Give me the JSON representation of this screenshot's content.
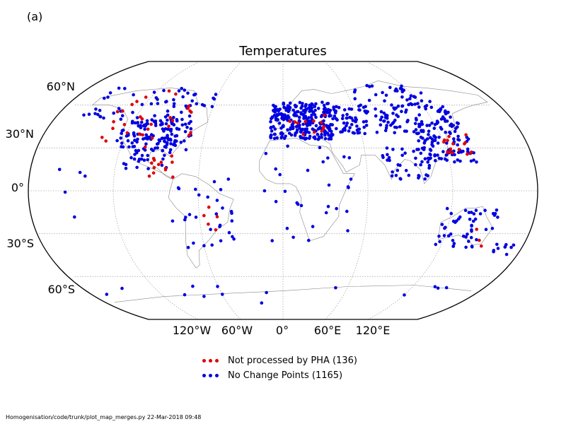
{
  "panel_label": "(a)",
  "title": "Temperatures",
  "lat_labels": [
    "60°N",
    "30°N",
    "0°",
    "30°S",
    "60°S"
  ],
  "lon_labels": [
    "120°W",
    "60°W",
    "0°",
    "60°E",
    "120°E"
  ],
  "legend": [
    {
      "label": "Not processed by PHA (136)",
      "color": "#e00000"
    },
    {
      "label": "No Change Points (1165)",
      "color": "#0000e0"
    }
  ],
  "footer": "Homogenisation/code/trunk/plot_map_merges.py   22-Mar-2018 09:48",
  "colors": {
    "red": "#e00000",
    "blue": "#0000e0",
    "grid": "#aaaaaa",
    "coast": "#888888"
  }
}
